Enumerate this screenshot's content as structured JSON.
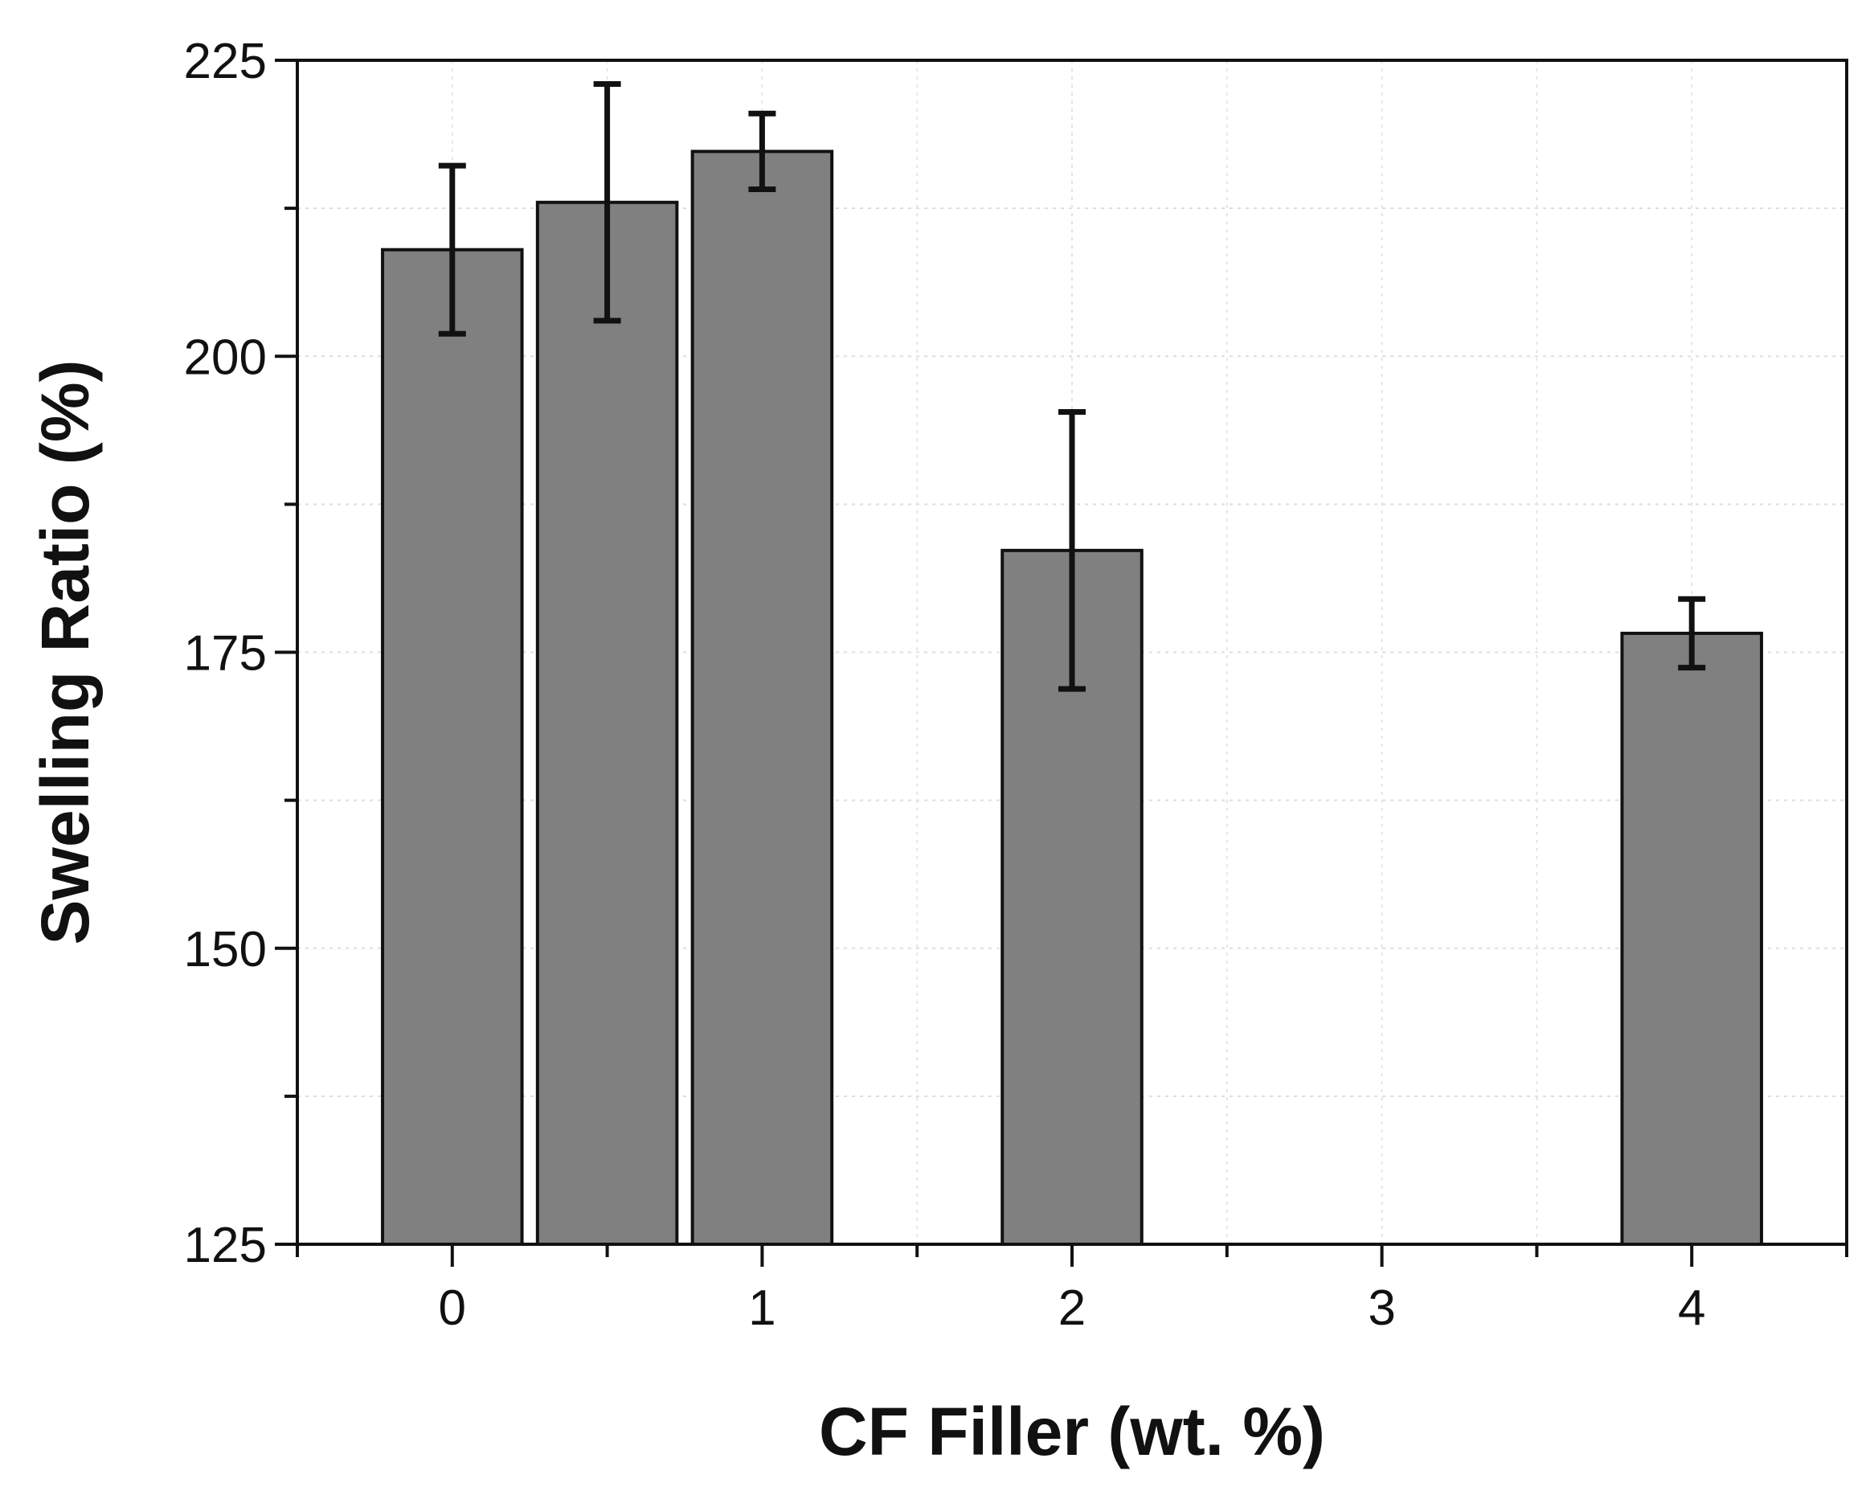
{
  "chart_data": {
    "type": "bar",
    "title": "",
    "xlabel": "CF Filler (wt. %)",
    "ylabel": "Swelling Ratio (%)",
    "xlim": [
      -0.5,
      4.5
    ],
    "ylim": [
      125,
      225
    ],
    "x_ticks": [
      0,
      1,
      2,
      3,
      4
    ],
    "x_tick_labels": [
      "0",
      "1",
      "2",
      "3",
      "4"
    ],
    "y_ticks": [
      125,
      150,
      175,
      200,
      225
    ],
    "y_tick_labels": [
      "125",
      "150",
      "175",
      "200",
      "225"
    ],
    "grid": true,
    "bar_color": "#808080",
    "bar_width": 0.45,
    "series": [
      {
        "name": "Swelling Ratio",
        "x": [
          0,
          0.5,
          1,
          2,
          4
        ],
        "values": [
          209,
          213,
          217.3,
          183.6,
          176.6
        ],
        "errors": [
          7.1,
          10,
          3.2,
          11.7,
          2.9
        ]
      }
    ]
  }
}
